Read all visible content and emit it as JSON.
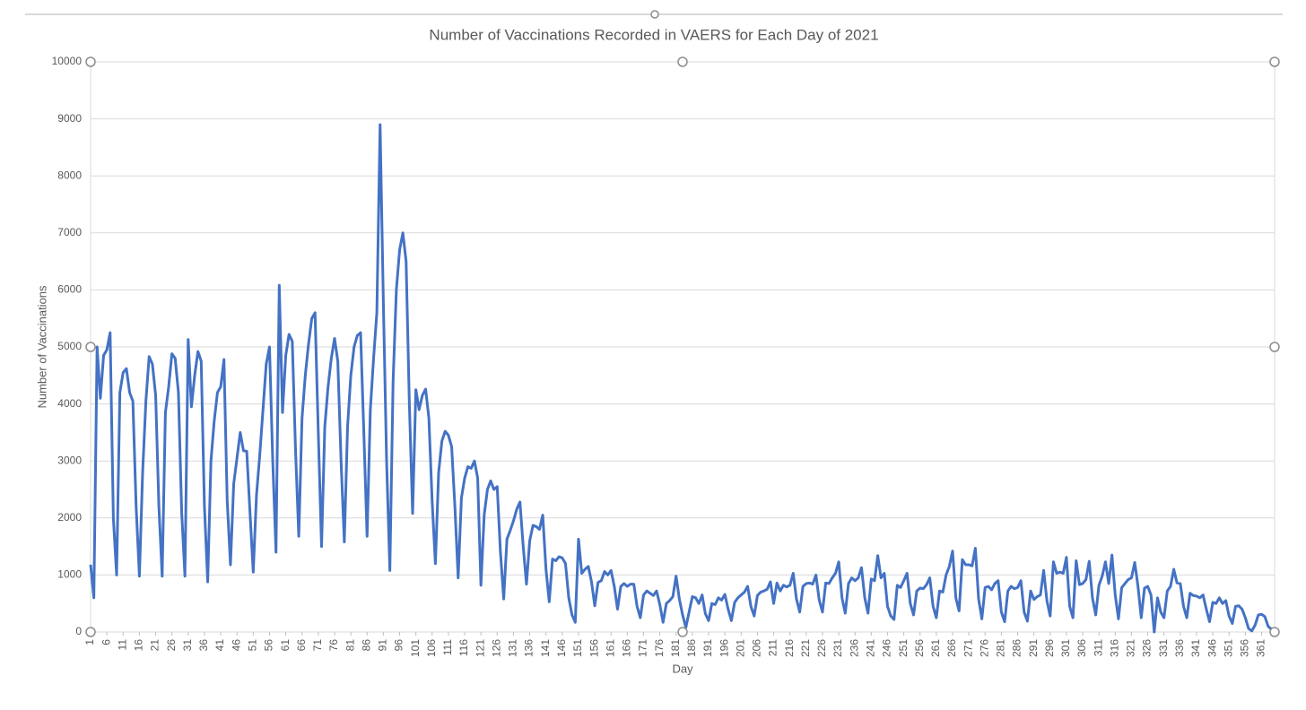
{
  "chart_data": {
    "type": "line",
    "title": "Number of Vaccinations Recorded in VAERS for Each Day of 2021",
    "x_label": "Day",
    "y_label": "Number of Vaccinations",
    "color": "#4472c4",
    "grid": true,
    "xlim": [
      1,
      365
    ],
    "ylim": [
      0,
      10000
    ],
    "yticks": [
      0,
      1000,
      2000,
      3000,
      4000,
      5000,
      6000,
      7000,
      8000,
      9000,
      10000
    ],
    "xticks": [
      1,
      6,
      11,
      16,
      21,
      26,
      31,
      36,
      41,
      46,
      51,
      56,
      61,
      66,
      71,
      76,
      81,
      86,
      91,
      96,
      101,
      106,
      111,
      116,
      121,
      126,
      131,
      136,
      141,
      146,
      151,
      156,
      161,
      166,
      171,
      176,
      181,
      186,
      191,
      196,
      201,
      206,
      211,
      216,
      221,
      226,
      231,
      236,
      241,
      246,
      251,
      256,
      261,
      266,
      271,
      276,
      281,
      286,
      291,
      296,
      301,
      306,
      311,
      316,
      321,
      326,
      331,
      336,
      341,
      346,
      351,
      356,
      361
    ],
    "x": [
      1,
      2,
      3,
      4,
      5,
      6,
      7,
      8,
      9,
      10,
      11,
      12,
      13,
      14,
      15,
      16,
      17,
      18,
      19,
      20,
      21,
      22,
      23,
      24,
      25,
      26,
      27,
      28,
      29,
      30,
      31,
      32,
      33,
      34,
      35,
      36,
      37,
      38,
      39,
      40,
      41,
      42,
      43,
      44,
      45,
      46,
      47,
      48,
      49,
      50,
      51,
      52,
      53,
      54,
      55,
      56,
      57,
      58,
      59,
      60,
      61,
      62,
      63,
      64,
      65,
      66,
      67,
      68,
      69,
      70,
      71,
      72,
      73,
      74,
      75,
      76,
      77,
      78,
      79,
      80,
      81,
      82,
      83,
      84,
      85,
      86,
      87,
      88,
      89,
      90,
      91,
      92,
      93,
      94,
      95,
      96,
      97,
      98,
      99,
      100,
      101,
      102,
      103,
      104,
      105,
      106,
      107,
      108,
      109,
      110,
      111,
      112,
      113,
      114,
      115,
      116,
      117,
      118,
      119,
      120,
      121,
      122,
      123,
      124,
      125,
      126,
      127,
      128,
      129,
      130,
      131,
      132,
      133,
      134,
      135,
      136,
      137,
      138,
      139,
      140,
      141,
      142,
      143,
      144,
      145,
      146,
      147,
      148,
      149,
      150,
      151,
      152,
      153,
      154,
      155,
      156,
      157,
      158,
      159,
      160,
      161,
      162,
      163,
      164,
      165,
      166,
      167,
      168,
      169,
      170,
      171,
      172,
      173,
      174,
      175,
      176,
      177,
      178,
      179,
      180,
      181,
      182,
      183,
      184,
      185,
      186,
      187,
      188,
      189,
      190,
      191,
      192,
      193,
      194,
      195,
      196,
      197,
      198,
      199,
      200,
      201,
      202,
      203,
      204,
      205,
      206,
      207,
      208,
      209,
      210,
      211,
      212,
      213,
      214,
      215,
      216,
      217,
      218,
      219,
      220,
      221,
      222,
      223,
      224,
      225,
      226,
      227,
      228,
      229,
      230,
      231,
      232,
      233,
      234,
      235,
      236,
      237,
      238,
      239,
      240,
      241,
      242,
      243,
      244,
      245,
      246,
      247,
      248,
      249,
      250,
      251,
      252,
      253,
      254,
      255,
      256,
      257,
      258,
      259,
      260,
      261,
      262,
      263,
      264,
      265,
      266,
      267,
      268,
      269,
      270,
      271,
      272,
      273,
      274,
      275,
      276,
      277,
      278,
      279,
      280,
      281,
      282,
      283,
      284,
      285,
      286,
      287,
      288,
      289,
      290,
      291,
      292,
      293,
      294,
      295,
      296,
      297,
      298,
      299,
      300,
      301,
      302,
      303,
      304,
      305,
      306,
      307,
      308,
      309,
      310,
      311,
      312,
      313,
      314,
      315,
      316,
      317,
      318,
      319,
      320,
      321,
      322,
      323,
      324,
      325,
      326,
      327,
      328,
      329,
      330,
      331,
      332,
      333,
      334,
      335,
      336,
      337,
      338,
      339,
      340,
      341,
      342,
      343,
      344,
      345,
      346,
      347,
      348,
      349,
      350,
      351,
      352,
      353,
      354,
      355,
      356,
      357,
      358,
      359,
      360,
      361,
      362,
      363,
      364,
      365
    ],
    "values": [
      1180,
      600,
      5000,
      4100,
      4850,
      4950,
      5250,
      2000,
      1000,
      4200,
      4550,
      4620,
      4200,
      4050,
      2200,
      980,
      2800,
      4050,
      4830,
      4700,
      4150,
      2200,
      980,
      3850,
      4300,
      4880,
      4800,
      4200,
      2100,
      980,
      5130,
      3950,
      4500,
      4920,
      4750,
      2200,
      880,
      3000,
      3700,
      4200,
      4300,
      4780,
      2300,
      1180,
      2600,
      3050,
      3500,
      3180,
      3170,
      2100,
      1050,
      2400,
      3100,
      3900,
      4700,
      5000,
      3000,
      1400,
      6080,
      3850,
      4850,
      5220,
      5100,
      3200,
      1680,
      3750,
      4500,
      5050,
      5500,
      5600,
      3500,
      1500,
      3600,
      4300,
      4800,
      5150,
      4750,
      3000,
      1580,
      3600,
      4500,
      5000,
      5200,
      5250,
      3500,
      1680,
      3900,
      4800,
      5600,
      8900,
      5800,
      3000,
      1080,
      4400,
      6000,
      6700,
      7000,
      6500,
      4000,
      2080,
      4250,
      3900,
      4150,
      4260,
      3750,
      2300,
      1200,
      2800,
      3350,
      3520,
      3450,
      3250,
      2200,
      950,
      2350,
      2700,
      2900,
      2870,
      3000,
      2700,
      820,
      2050,
      2500,
      2650,
      2500,
      2550,
      1400,
      580,
      1630,
      1780,
      1950,
      2150,
      2280,
      1500,
      840,
      1600,
      1870,
      1850,
      1800,
      2050,
      1100,
      530,
      1280,
      1250,
      1320,
      1300,
      1200,
      600,
      300,
      170,
      1630,
      1030,
      1100,
      1150,
      880,
      460,
      870,
      900,
      1060,
      1000,
      1080,
      800,
      400,
      800,
      850,
      800,
      840,
      840,
      450,
      250,
      650,
      720,
      680,
      640,
      720,
      480,
      170,
      500,
      550,
      620,
      980,
      580,
      300,
      80,
      350,
      620,
      600,
      500,
      650,
      320,
      200,
      500,
      480,
      600,
      560,
      660,
      400,
      200,
      520,
      600,
      650,
      700,
      800,
      450,
      280,
      640,
      700,
      720,
      750,
      880,
      500,
      860,
      720,
      820,
      790,
      820,
      1030,
      580,
      350,
      800,
      850,
      860,
      840,
      1000,
      560,
      350,
      860,
      850,
      950,
      1030,
      1230,
      600,
      330,
      850,
      950,
      900,
      950,
      1130,
      600,
      330,
      930,
      900,
      1340,
      950,
      1030,
      450,
      280,
      220,
      820,
      780,
      900,
      1030,
      500,
      300,
      720,
      770,
      760,
      830,
      950,
      450,
      250,
      720,
      700,
      1000,
      1150,
      1420,
      600,
      370,
      1270,
      1180,
      1180,
      1160,
      1470,
      580,
      230,
      780,
      800,
      740,
      850,
      900,
      350,
      180,
      720,
      800,
      760,
      780,
      900,
      350,
      190,
      720,
      570,
      620,
      650,
      1080,
      550,
      280,
      1230,
      1030,
      1050,
      1030,
      1310,
      450,
      250,
      1250,
      830,
      850,
      920,
      1240,
      600,
      300,
      820,
      980,
      1230,
      850,
      1350,
      650,
      230,
      780,
      850,
      920,
      950,
      1220,
      800,
      250,
      770,
      800,
      650,
      0,
      600,
      350,
      250,
      720,
      800,
      1100,
      860,
      850,
      450,
      250,
      680,
      640,
      630,
      600,
      650,
      400,
      180,
      520,
      500,
      600,
      500,
      550,
      280,
      150,
      450,
      460,
      400,
      250,
      60,
      20,
      120,
      300,
      310,
      270,
      100,
      50,
      30
    ]
  }
}
